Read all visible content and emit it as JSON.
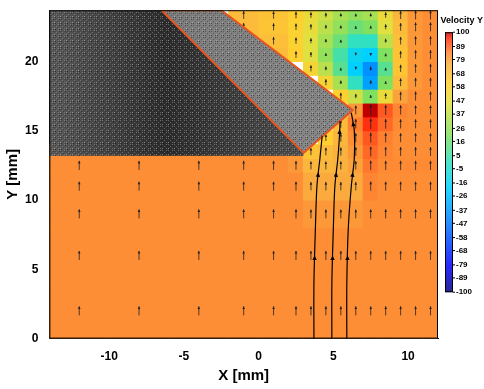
{
  "chart_data": {
    "type": "heatmap",
    "x_label": "X [mm]",
    "y_label": "Y [mm]",
    "xlim": [
      -14,
      12
    ],
    "ylim": [
      0,
      23.7
    ],
    "xticks": [
      -10,
      -5,
      0,
      5,
      10
    ],
    "yticks": [
      0,
      5,
      10,
      15,
      20
    ],
    "grid": false,
    "cell_x_edges": [
      -14,
      -10,
      -6,
      -2,
      0,
      2,
      3,
      4,
      5,
      6,
      7,
      8,
      9,
      10,
      11,
      12
    ],
    "cell_y_edges": [
      0,
      4,
      8,
      10,
      12,
      13,
      14,
      15,
      16,
      17,
      18,
      19,
      20,
      21,
      22,
      23,
      23.7
    ],
    "cells": [
      [
        82,
        82,
        82,
        82,
        82,
        82,
        82,
        82,
        82,
        82,
        82,
        82,
        82,
        82,
        82
      ],
      [
        82,
        82,
        82,
        82,
        82,
        82,
        82,
        82,
        82,
        82,
        82,
        82,
        82,
        82,
        82
      ],
      [
        82,
        82,
        82,
        82,
        82,
        82,
        80,
        80,
        80,
        80,
        82,
        82,
        82,
        82,
        82
      ],
      [
        82,
        82,
        82,
        82,
        82,
        82,
        76,
        76,
        76,
        76,
        84,
        82,
        82,
        82,
        82
      ],
      [
        82,
        82,
        82,
        82,
        82,
        80,
        72,
        72,
        74,
        78,
        86,
        83,
        83,
        83,
        83
      ],
      [
        82,
        82,
        82,
        82,
        82,
        80,
        66,
        70,
        74,
        80,
        88,
        84,
        82,
        82,
        82
      ],
      [
        null,
        null,
        null,
        null,
        null,
        null,
        null,
        60,
        72,
        82,
        90,
        85,
        82,
        82,
        82
      ],
      [
        null,
        null,
        null,
        null,
        null,
        null,
        null,
        null,
        70,
        85,
        95,
        88,
        83,
        82,
        82
      ],
      [
        null,
        null,
        null,
        null,
        null,
        null,
        null,
        null,
        null,
        80,
        100,
        90,
        84,
        82,
        82
      ],
      [
        null,
        null,
        null,
        null,
        null,
        null,
        null,
        null,
        60,
        40,
        20,
        50,
        78,
        82,
        82
      ],
      [
        null,
        null,
        null,
        null,
        null,
        null,
        null,
        55,
        30,
        0,
        -35,
        20,
        70,
        80,
        82
      ],
      [
        null,
        null,
        null,
        null,
        null,
        null,
        55,
        35,
        10,
        -20,
        -40,
        10,
        65,
        80,
        82
      ],
      [
        null,
        null,
        null,
        null,
        70,
        60,
        45,
        25,
        5,
        -15,
        -20,
        20,
        65,
        80,
        82
      ],
      [
        null,
        null,
        null,
        70,
        68,
        58,
        45,
        30,
        15,
        0,
        0,
        35,
        68,
        80,
        82
      ],
      [
        null,
        null,
        null,
        70,
        65,
        58,
        48,
        35,
        25,
        15,
        20,
        45,
        70,
        80,
        82
      ],
      [
        null,
        null,
        null,
        70,
        66,
        60,
        50,
        40,
        30,
        25,
        30,
        50,
        72,
        80,
        82
      ]
    ],
    "colorbar": {
      "title": "Velocity Y",
      "range": [
        -100,
        100
      ],
      "ticks": [
        100,
        89,
        79,
        68,
        58,
        47,
        37,
        26,
        16,
        5,
        -5,
        -16,
        -26,
        -37,
        -47,
        -58,
        -68,
        -79,
        -89,
        -100
      ]
    },
    "mask": [
      [
        -14,
        13.2
      ],
      [
        3,
        13.2
      ],
      [
        3,
        13.4
      ],
      [
        6.3,
        16.5
      ],
      [
        -2.5,
        23.7
      ],
      [
        -14,
        23.7
      ]
    ],
    "plate": [
      [
        3,
        13.4
      ],
      [
        6.3,
        16.5
      ],
      [
        -2.5,
        23.7
      ],
      [
        -6.5,
        23.7
      ]
    ],
    "streamlines": [
      [
        [
          3.7,
          0
        ],
        [
          3.7,
          4
        ],
        [
          3.8,
          8
        ],
        [
          3.9,
          11
        ],
        [
          4.1,
          13
        ],
        [
          4.25,
          14.6
        ]
      ],
      [
        [
          4.9,
          0
        ],
        [
          4.9,
          4
        ],
        [
          5.0,
          8
        ],
        [
          5.1,
          11
        ],
        [
          5.3,
          13
        ],
        [
          5.4,
          14.5
        ],
        [
          5.45,
          15.7
        ]
      ],
      [
        [
          5.9,
          0
        ],
        [
          5.9,
          4
        ],
        [
          6.0,
          8
        ],
        [
          6.2,
          11
        ],
        [
          6.4,
          13
        ],
        [
          6.4,
          15
        ],
        [
          6.2,
          16.3
        ]
      ]
    ]
  }
}
